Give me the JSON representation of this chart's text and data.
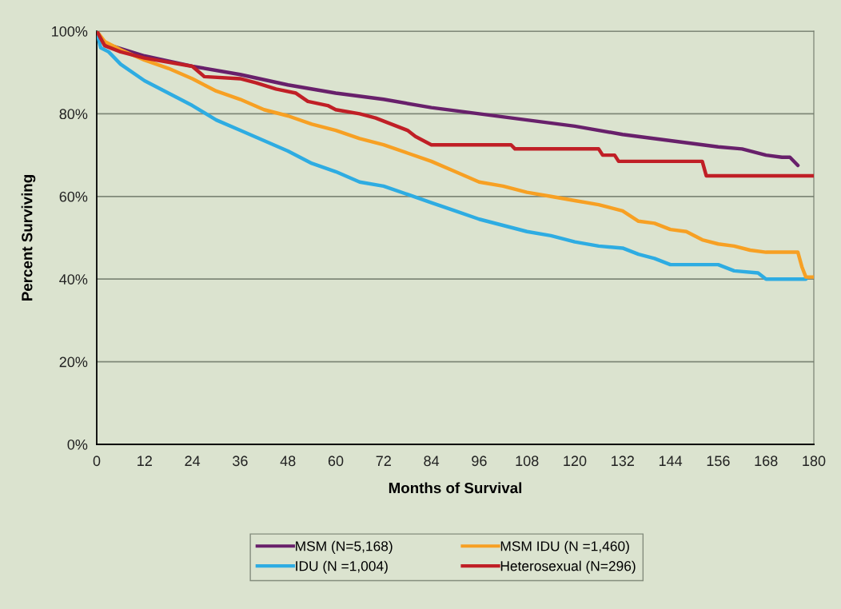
{
  "chart_data": {
    "type": "line",
    "xlabel": "Months of Survival",
    "ylabel": "Percent Surviving",
    "xlim": [
      0,
      180
    ],
    "xticks": [
      0,
      12,
      24,
      36,
      48,
      60,
      72,
      84,
      96,
      108,
      120,
      132,
      144,
      156,
      168,
      180
    ],
    "ylim": [
      0,
      100
    ],
    "yticks": [
      {
        "value": 0,
        "label": "0%"
      },
      {
        "value": 20,
        "label": "20%"
      },
      {
        "value": 40,
        "label": "40%"
      },
      {
        "value": 60,
        "label": "60%"
      },
      {
        "value": 80,
        "label": "80%"
      },
      {
        "value": 100,
        "label": "100%"
      }
    ],
    "grid": "y",
    "legend": "bottom",
    "marker": "none",
    "line_style": "solid",
    "series": [
      {
        "name": "MSM (N=5,168)",
        "color": "#68206b",
        "x": [
          0,
          2,
          12,
          24,
          36,
          48,
          60,
          72,
          84,
          96,
          108,
          120,
          132,
          144,
          156,
          162,
          168,
          172,
          174,
          176
        ],
        "values": [
          100,
          97,
          94,
          91.5,
          89.5,
          87,
          85,
          83.5,
          81.5,
          80,
          78.5,
          77,
          75,
          73.5,
          72,
          71.5,
          70,
          69.5,
          69.5,
          67.5
        ]
      },
      {
        "name": "IDU (N =1,004)",
        "color": "#2eace2",
        "x": [
          0,
          1,
          3,
          6,
          12,
          18,
          24,
          30,
          36,
          42,
          48,
          54,
          60,
          66,
          72,
          78,
          84,
          90,
          96,
          102,
          108,
          114,
          120,
          126,
          132,
          136,
          140,
          144,
          156,
          160,
          166,
          168,
          178
        ],
        "values": [
          100,
          96,
          95,
          92,
          88,
          85,
          82,
          78.5,
          76,
          73.5,
          71,
          68,
          66,
          63.5,
          62.5,
          60.5,
          58.5,
          56.5,
          54.5,
          53,
          51.5,
          50.5,
          49,
          48,
          47.5,
          46,
          45,
          43.5,
          43.5,
          42,
          41.5,
          40,
          40
        ]
      },
      {
        "name": "MSM IDU (N =1,460)",
        "color": "#f7a023",
        "x": [
          0,
          2,
          6,
          12,
          18,
          24,
          30,
          36,
          42,
          48,
          54,
          60,
          66,
          72,
          78,
          84,
          90,
          96,
          102,
          108,
          114,
          120,
          126,
          132,
          136,
          140,
          144,
          148,
          152,
          156,
          160,
          164,
          168,
          176,
          177,
          178,
          180
        ],
        "values": [
          100,
          97.5,
          95.5,
          93,
          91,
          88.5,
          85.5,
          83.5,
          81,
          79.5,
          77.5,
          76,
          74,
          72.5,
          70.5,
          68.5,
          66,
          63.5,
          62.5,
          61,
          60,
          59,
          58,
          56.5,
          54,
          53.5,
          52,
          51.5,
          49.5,
          48.5,
          48,
          47,
          46.5,
          46.5,
          43,
          40.5,
          40.5
        ]
      },
      {
        "name": "Heterosexual (N=296)",
        "color": "#c01f26",
        "x": [
          0,
          2,
          6,
          12,
          24,
          27,
          36,
          40,
          45,
          50,
          53,
          58,
          60,
          66,
          70,
          74,
          78,
          80,
          84,
          104,
          105,
          126,
          127,
          130,
          131,
          152,
          153,
          180
        ],
        "values": [
          100,
          96.5,
          95,
          93.5,
          91.5,
          89,
          88.5,
          87.5,
          86,
          85,
          83,
          82,
          81,
          80,
          79,
          77.5,
          76,
          74.5,
          72.5,
          72.5,
          71.5,
          71.5,
          70,
          70,
          68.5,
          68.5,
          65,
          65
        ]
      }
    ]
  }
}
